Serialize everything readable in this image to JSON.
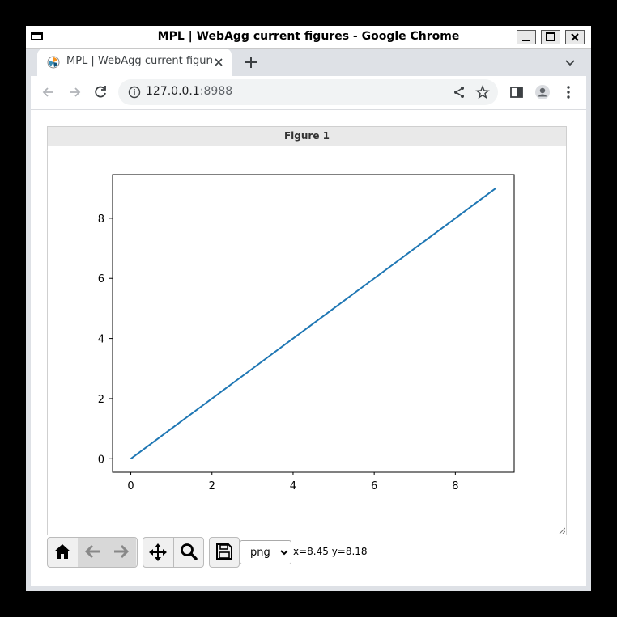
{
  "window": {
    "title": "MPL | WebAgg current figures - Google Chrome"
  },
  "tab": {
    "title": "MPL | WebAgg current figures",
    "favicon": "matplotlib-logo-icon"
  },
  "address_bar": {
    "host": "127.0.0.1",
    "port": ":8988"
  },
  "figure": {
    "header": "Figure 1"
  },
  "chart_data": {
    "type": "line",
    "x": [
      0,
      1,
      2,
      3,
      4,
      5,
      6,
      7,
      8,
      9
    ],
    "series": [
      {
        "values": [
          0,
          1,
          2,
          3,
          4,
          5,
          6,
          7,
          8,
          9
        ],
        "color": "#1f77b4"
      }
    ],
    "xlim": [
      -0.45,
      9.45
    ],
    "ylim": [
      -0.45,
      9.45
    ],
    "xticks": [
      0,
      2,
      4,
      6,
      8
    ],
    "yticks": [
      0,
      2,
      4,
      6,
      8
    ],
    "title": "",
    "xlabel": "",
    "ylabel": "",
    "grid": false
  },
  "mpl_toolbar": {
    "buttons": [
      {
        "name": "home-button",
        "icon": "home-icon",
        "enabled": true
      },
      {
        "name": "back-button",
        "icon": "arrow-left-icon",
        "enabled": false
      },
      {
        "name": "forward-button",
        "icon": "arrow-right-icon",
        "enabled": false
      },
      {
        "name": "pan-button",
        "icon": "move-icon",
        "enabled": true
      },
      {
        "name": "zoom-button",
        "icon": "search-icon",
        "enabled": true
      },
      {
        "name": "download-button",
        "icon": "floppy-disk-icon",
        "enabled": true
      }
    ],
    "format_selected": "png",
    "coords": "x=8.45 y=8.18"
  }
}
